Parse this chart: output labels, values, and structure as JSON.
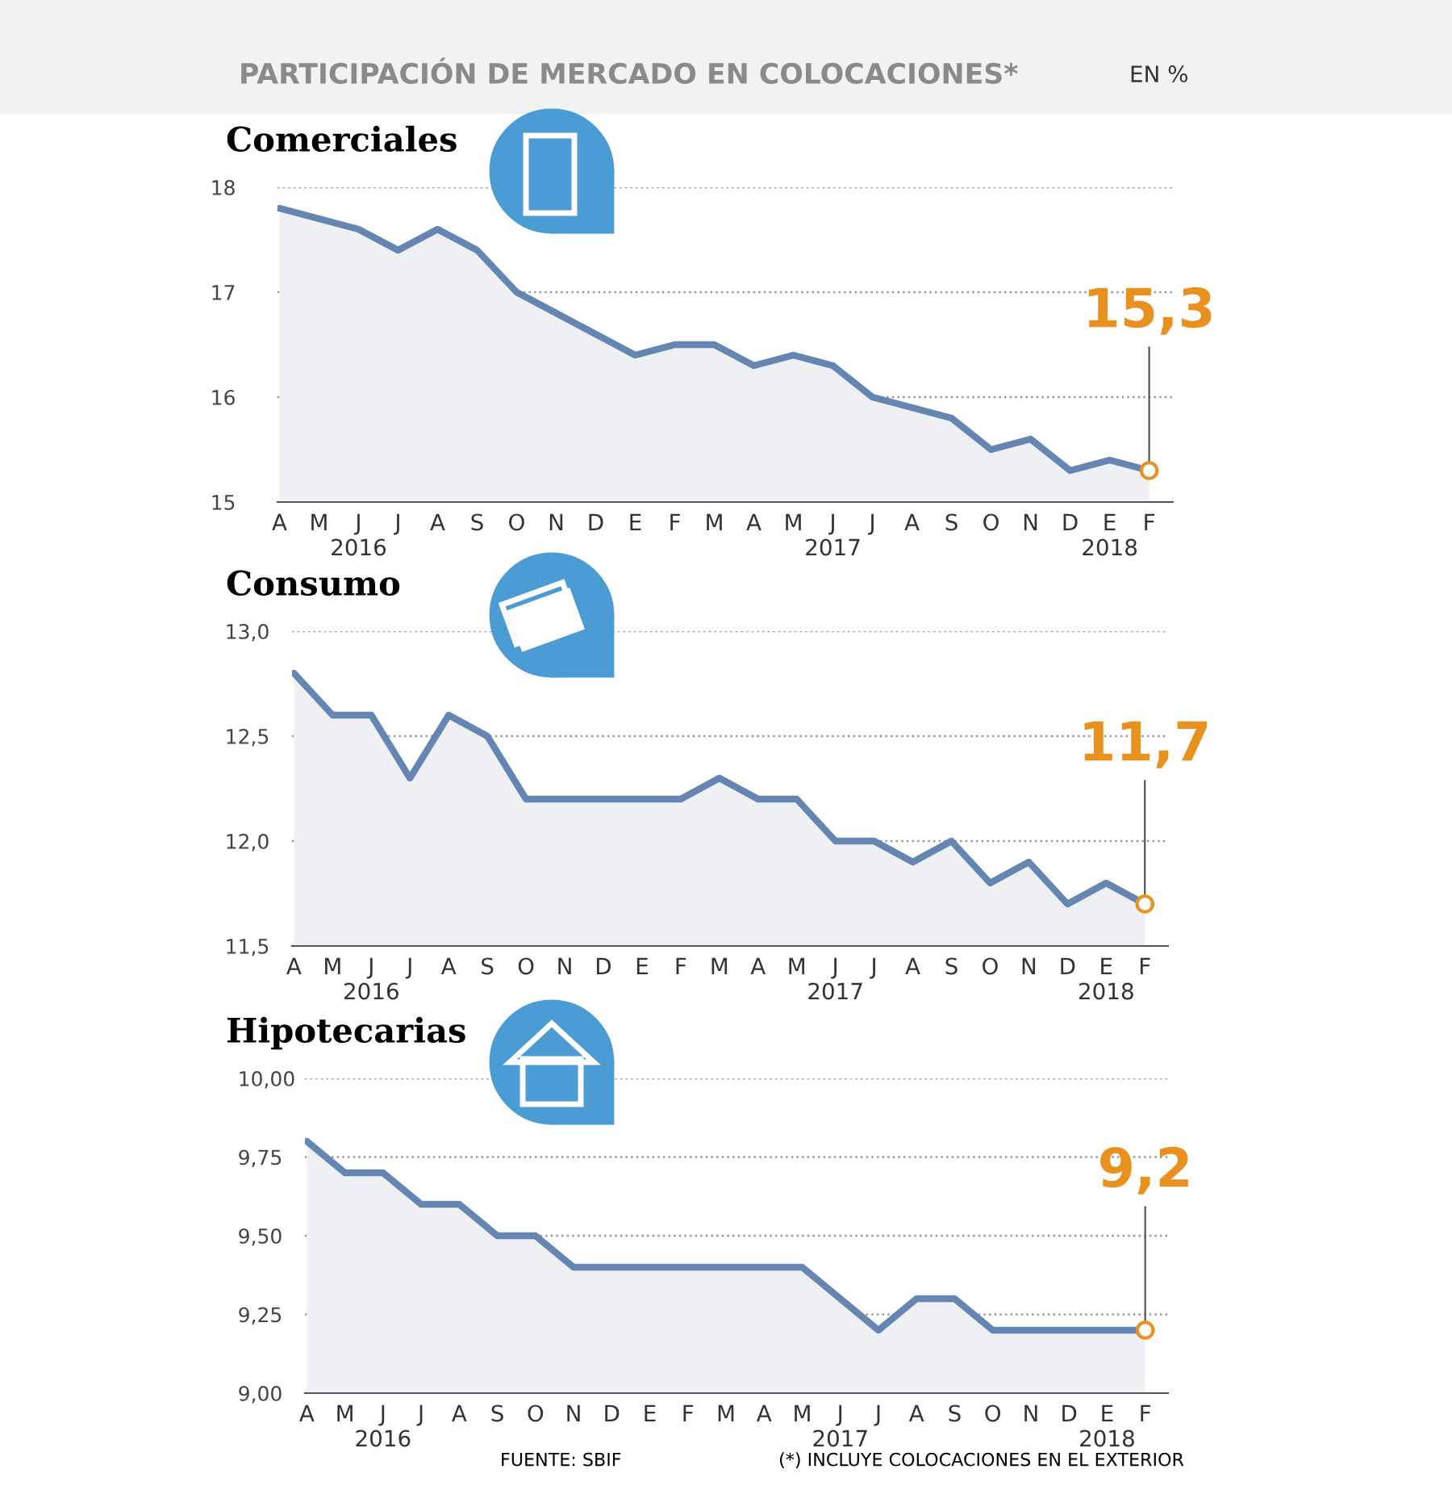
{
  "chart_data": [
    {
      "type": "area",
      "title": "Comerciales",
      "annotations": [
        "PARTICIPACIÓN DE MERCADO EN COLOCACIONES*",
        "EN %",
        {
          "text": "15,3",
          "y": 15.3
        }
      ],
      "categories": [
        "A",
        "M",
        "J\n2016",
        "J",
        "A",
        "S",
        "O",
        "N",
        "D",
        "E",
        "F",
        "M",
        "A",
        "M",
        "J\n2017",
        "J",
        "A",
        "S",
        "O",
        "N",
        "D",
        "E\n2018",
        "F"
      ],
      "series": [
        {
          "color": "#6586b3",
          "values": [
            17.8,
            17.7,
            17.6,
            17.4,
            17.6,
            17.4,
            17.0,
            16.8,
            16.6,
            16.4,
            16.5,
            16.5,
            16.3,
            16.4,
            16.3,
            16.0,
            15.9,
            15.8,
            15.5,
            15.6,
            15.3,
            15.4,
            15.3
          ]
        }
      ],
      "ylim": [
        15,
        18
      ],
      "yticks": [
        15,
        16,
        17,
        18
      ],
      "grid": "y",
      "line_style": "solid"
    },
    {
      "type": "area",
      "title": "Consumo",
      "annotations": [
        {
          "text": "11,7",
          "y": 11.7
        }
      ],
      "categories": [
        "A",
        "M",
        "J\n2016",
        "J",
        "A",
        "S",
        "O",
        "N",
        "D",
        "E",
        "F",
        "M",
        "A",
        "M",
        "J\n2017",
        "J",
        "A",
        "S",
        "O",
        "N",
        "D",
        "E\n2018",
        "F"
      ],
      "series": [
        {
          "color": "#6586b3",
          "values": [
            12.8,
            12.6,
            12.6,
            12.3,
            12.6,
            12.5,
            12.2,
            12.2,
            12.2,
            12.2,
            12.2,
            12.3,
            12.2,
            12.2,
            12.0,
            12.0,
            11.9,
            12.0,
            11.8,
            11.9,
            11.7,
            11.8,
            11.7
          ]
        }
      ],
      "ylim": [
        11.5,
        13.0
      ],
      "yticks": [
        {
          "value": 11.5,
          "label": "11,5"
        },
        {
          "value": 12.0,
          "label": "12,0"
        },
        {
          "value": 12.5,
          "label": "12,5"
        },
        {
          "value": 13.0,
          "label": "13,0"
        }
      ],
      "grid": "y",
      "line_style": "solid"
    },
    {
      "type": "area",
      "title": "Hipotecarias",
      "annotations": [
        {
          "text": "9,2",
          "y": 9.2
        },
        "FUENTE: SBIF",
        "(*) INCLUYE COLOCACIONES EN EL EXTERIOR"
      ],
      "categories": [
        "A",
        "M",
        "J\n2016",
        "J",
        "A",
        "S",
        "O",
        "N",
        "D",
        "E",
        "F",
        "M",
        "A",
        "M",
        "J\n2017",
        "J",
        "A",
        "S",
        "O",
        "N",
        "D",
        "E\n2018",
        "F"
      ],
      "series": [
        {
          "color": "#6586b3",
          "values": [
            9.8,
            9.7,
            9.7,
            9.6,
            9.6,
            9.5,
            9.5,
            9.4,
            9.4,
            9.4,
            9.4,
            9.4,
            9.4,
            9.4,
            9.3,
            9.2,
            9.3,
            9.3,
            9.2,
            9.2,
            9.2,
            9.2,
            9.2
          ]
        }
      ],
      "ylim": [
        9.0,
        10.0
      ],
      "yticks": [
        {
          "value": 9.0,
          "label": "9,00"
        },
        {
          "value": 9.25,
          "label": "9,25"
        },
        {
          "value": 9.5,
          "label": "9,50"
        },
        {
          "value": 9.75,
          "label": "9,75"
        },
        {
          "value": 10.0,
          "label": "10,00"
        }
      ],
      "grid": "y",
      "line_style": "solid"
    }
  ]
}
